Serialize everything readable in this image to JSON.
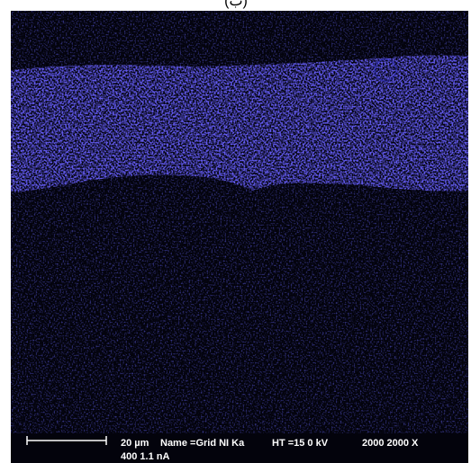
{
  "caption": "(ب)",
  "scale_label": "20 µm",
  "info": {
    "name": "Name =Grid NI Ka",
    "ht": "HT =15 0 kV",
    "mag": "2000 2000 X",
    "line2": "400 1.1 nA"
  }
}
